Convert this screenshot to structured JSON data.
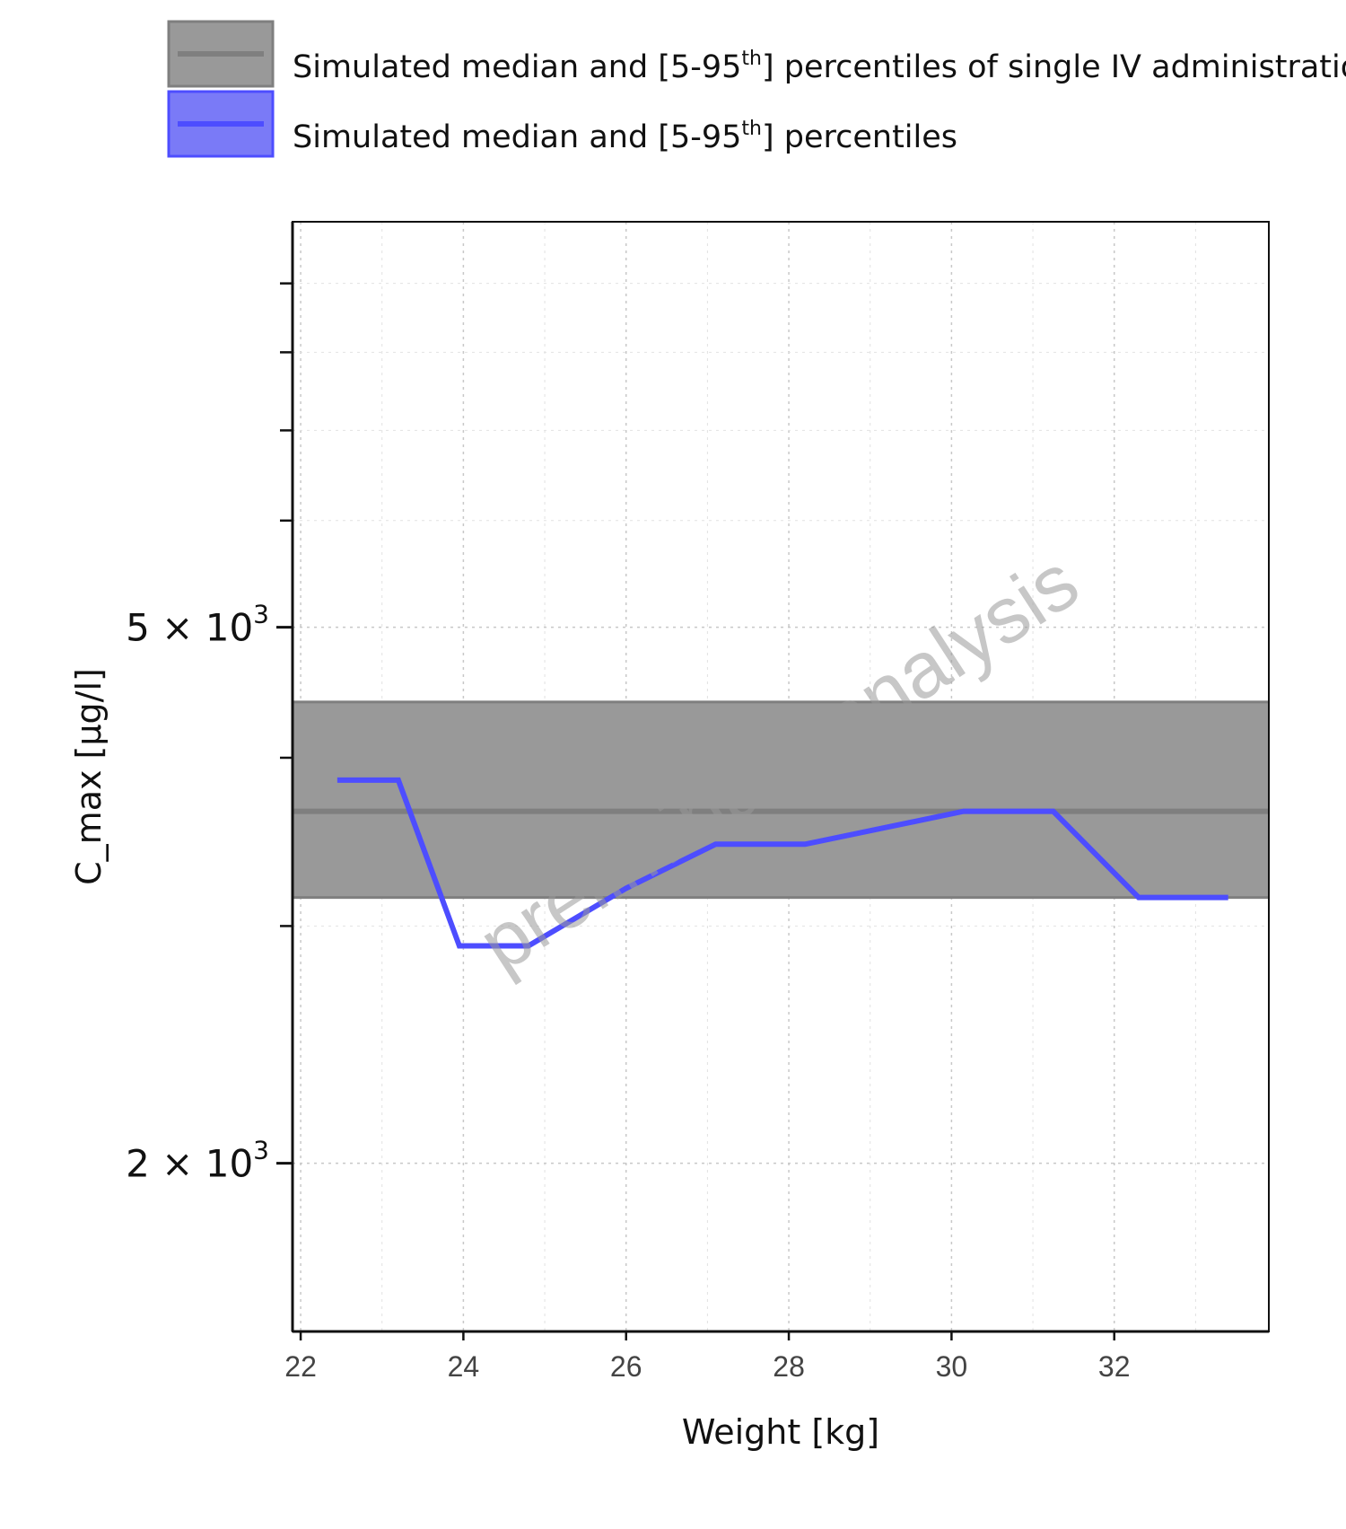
{
  "chart_data": {
    "type": "line",
    "xlabel": "Weight [kg]",
    "ylabel": "C_max [µg/l]",
    "x_ticks": [
      22,
      24,
      26,
      28,
      30,
      32
    ],
    "xlim": [
      21.9,
      33.9
    ],
    "y_scale": "log",
    "ylim": [
      1500,
      10000
    ],
    "y_ticks": [
      {
        "value": 2000,
        "mantissa": "2",
        "times": "×",
        "base": "10",
        "exponent": "3"
      },
      {
        "value": 5000,
        "mantissa": "5",
        "times": "×",
        "base": "10",
        "exponent": "3"
      }
    ],
    "y_minor_ticks": [
      3000,
      4000,
      6000,
      7000,
      8000,
      9000
    ],
    "grid": true,
    "legend": {
      "placement": "top",
      "items": [
        {
          "label_before": "Simulated median and [5-95",
          "label_sup": "th",
          "label_after": "] percentiles of single IV administration",
          "fill": "#999999",
          "line": "#7f7f7f"
        },
        {
          "label_before": "Simulated median and [5-95",
          "label_sup": "th",
          "label_after": "] percentiles",
          "fill": "#7a7af7",
          "line": "#4d4dff"
        }
      ]
    },
    "series": [
      {
        "kind": "band",
        "median": 3650,
        "lower": 3150,
        "upper": 4400,
        "fill_color": "#999999",
        "line_color": "#7f7f7f"
      },
      {
        "kind": "line",
        "color": "#4d4dff",
        "x": [
          22.45,
          23.2,
          23.95,
          24.8,
          26.0,
          27.1,
          28.2,
          30.15,
          31.25,
          32.3,
          33.4
        ],
        "y": [
          3850,
          3850,
          2900,
          2900,
          3200,
          3450,
          3450,
          3650,
          3650,
          3150,
          3150
        ]
      }
    ],
    "annotations": [
      {
        "text": "preliminary analysis",
        "kind": "watermark"
      }
    ]
  }
}
